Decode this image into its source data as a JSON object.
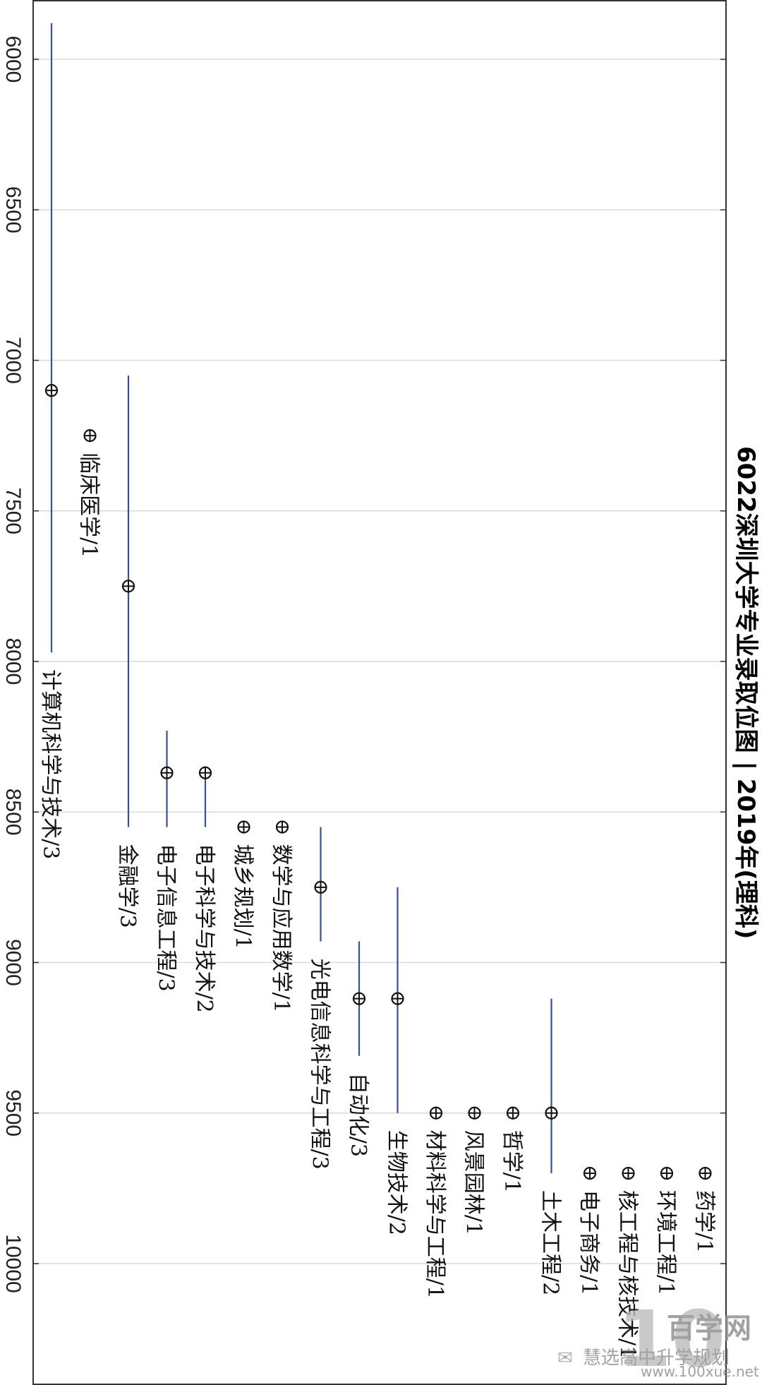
{
  "chart_data": {
    "type": "scatter",
    "title": "6022深圳大学专业录取位图 | 2019年(理科)",
    "orientation": "rotated-90-clockwise",
    "axis": {
      "min": 5850,
      "max": 10400,
      "ticks": [
        6000,
        6500,
        7000,
        7500,
        8000,
        8500,
        9000,
        9500,
        10000
      ],
      "grid": true
    },
    "colors": {
      "range_line": "#3b4f8f",
      "marker": "#111111",
      "grid": "#d9d9d9",
      "frame": "#333333"
    },
    "majors": [
      {
        "label": "计算机科学与技术/3",
        "value": 7100,
        "min": 5880,
        "max": 7970
      },
      {
        "label": "临床医学/1",
        "value": 7250,
        "min": null,
        "max": null
      },
      {
        "label": "金融学/3",
        "value": 7750,
        "min": 7050,
        "max": 8550
      },
      {
        "label": "电子信息工程/3",
        "value": 8370,
        "min": 8230,
        "max": 8550
      },
      {
        "label": "电子科学与技术/2",
        "value": 8370,
        "min": 8370,
        "max": 8550
      },
      {
        "label": "城乡规划/1",
        "value": 8550,
        "min": null,
        "max": null
      },
      {
        "label": "数学与应用数学/1",
        "value": 8550,
        "min": null,
        "max": null
      },
      {
        "label": "光电信息科学与工程/3",
        "value": 8750,
        "min": 8550,
        "max": 8930
      },
      {
        "label": "自动化/3",
        "value": 9120,
        "min": 8930,
        "max": 9310
      },
      {
        "label": "生物技术/2",
        "value": 9120,
        "min": 8750,
        "max": 9500
      },
      {
        "label": "材料科学与工程/1",
        "value": 9500,
        "min": null,
        "max": null
      },
      {
        "label": "风景园林/1",
        "value": 9500,
        "min": null,
        "max": null
      },
      {
        "label": "哲学/1",
        "value": 9500,
        "min": null,
        "max": null
      },
      {
        "label": "土木工程/2",
        "value": 9500,
        "min": 9120,
        "max": 9700
      },
      {
        "label": "电子商务/1",
        "value": 9700,
        "min": null,
        "max": null
      },
      {
        "label": "核工程与核技术/1",
        "value": 9700,
        "min": null,
        "max": null
      },
      {
        "label": "环境工程/1",
        "value": 9700,
        "min": null,
        "max": null
      },
      {
        "label": "药学/1",
        "value": 9700,
        "min": null,
        "max": null
      }
    ]
  },
  "watermark": {
    "logo_text": "百学网",
    "url": "www.100xue.net",
    "account": "慧选高中升学规划"
  }
}
